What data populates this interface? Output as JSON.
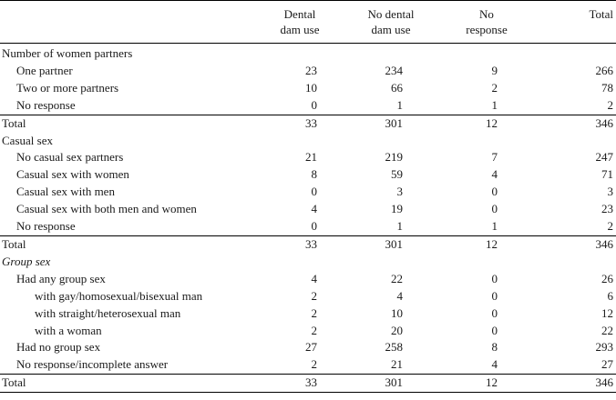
{
  "table": {
    "headers": [
      "",
      "Dental\ndam use",
      "No dental\ndam use",
      "No\nresponse",
      "Total"
    ],
    "header_lines": [
      [
        "",
        ""
      ],
      [
        "Dental",
        "dam use"
      ],
      [
        "No dental",
        "dam use"
      ],
      [
        "No",
        "response"
      ],
      [
        "Total",
        ""
      ]
    ],
    "rows": [
      {
        "label": "Number of women partners",
        "level": 0,
        "italic": false,
        "cells": [
          "",
          "",
          "",
          ""
        ]
      },
      {
        "label": "One partner",
        "level": 1,
        "italic": false,
        "cells": [
          "23",
          "234",
          "9",
          "266"
        ]
      },
      {
        "label": "Two or more partners",
        "level": 1,
        "italic": false,
        "cells": [
          "10",
          "66",
          "2",
          "78"
        ]
      },
      {
        "label": "No response",
        "level": 1,
        "italic": false,
        "cells": [
          "0",
          "1",
          "1",
          "2"
        ]
      },
      {
        "label": "Total",
        "level": 0,
        "italic": false,
        "total": true,
        "cells": [
          "33",
          "301",
          "12",
          "346"
        ]
      },
      {
        "label": "Casual sex",
        "level": 0,
        "italic": false,
        "cells": [
          "",
          "",
          "",
          ""
        ]
      },
      {
        "label": "No casual sex partners",
        "level": 1,
        "italic": false,
        "cells": [
          "21",
          "219",
          "7",
          "247"
        ]
      },
      {
        "label": "Casual sex with women",
        "level": 1,
        "italic": false,
        "cells": [
          "8",
          "59",
          "4",
          "71"
        ]
      },
      {
        "label": "Casual sex with men",
        "level": 1,
        "italic": false,
        "cells": [
          "0",
          "3",
          "0",
          "3"
        ]
      },
      {
        "label": "Casual sex with both men and women",
        "level": 1,
        "italic": false,
        "cells": [
          "4",
          "19",
          "0",
          "23"
        ]
      },
      {
        "label": "No response",
        "level": 1,
        "italic": false,
        "cells": [
          "0",
          "1",
          "1",
          "2"
        ]
      },
      {
        "label": "Total",
        "level": 0,
        "italic": false,
        "total": true,
        "cells": [
          "33",
          "301",
          "12",
          "346"
        ]
      },
      {
        "label": "Group sex",
        "level": 0,
        "italic": true,
        "cells": [
          "",
          "",
          "",
          ""
        ]
      },
      {
        "label": "Had any group sex",
        "level": 1,
        "italic": false,
        "cells": [
          "4",
          "22",
          "0",
          "26"
        ]
      },
      {
        "label": "with gay/homosexual/bisexual man",
        "level": 2,
        "italic": false,
        "cells": [
          "2",
          "4",
          "0",
          "6"
        ]
      },
      {
        "label": "with straight/heterosexual man",
        "level": 2,
        "italic": false,
        "cells": [
          "2",
          "10",
          "0",
          "12"
        ]
      },
      {
        "label": "with a woman",
        "level": 2,
        "italic": false,
        "cells": [
          "2",
          "20",
          "0",
          "22"
        ]
      },
      {
        "label": "Had no group sex",
        "level": 1,
        "italic": false,
        "cells": [
          "27",
          "258",
          "8",
          "293"
        ]
      },
      {
        "label": "No response/incomplete answer",
        "level": 1,
        "italic": false,
        "cells": [
          "2",
          "21",
          "4",
          "27"
        ]
      },
      {
        "label": "Total",
        "level": 0,
        "italic": false,
        "total": true,
        "last": true,
        "cells": [
          "33",
          "301",
          "12",
          "346"
        ]
      }
    ]
  }
}
